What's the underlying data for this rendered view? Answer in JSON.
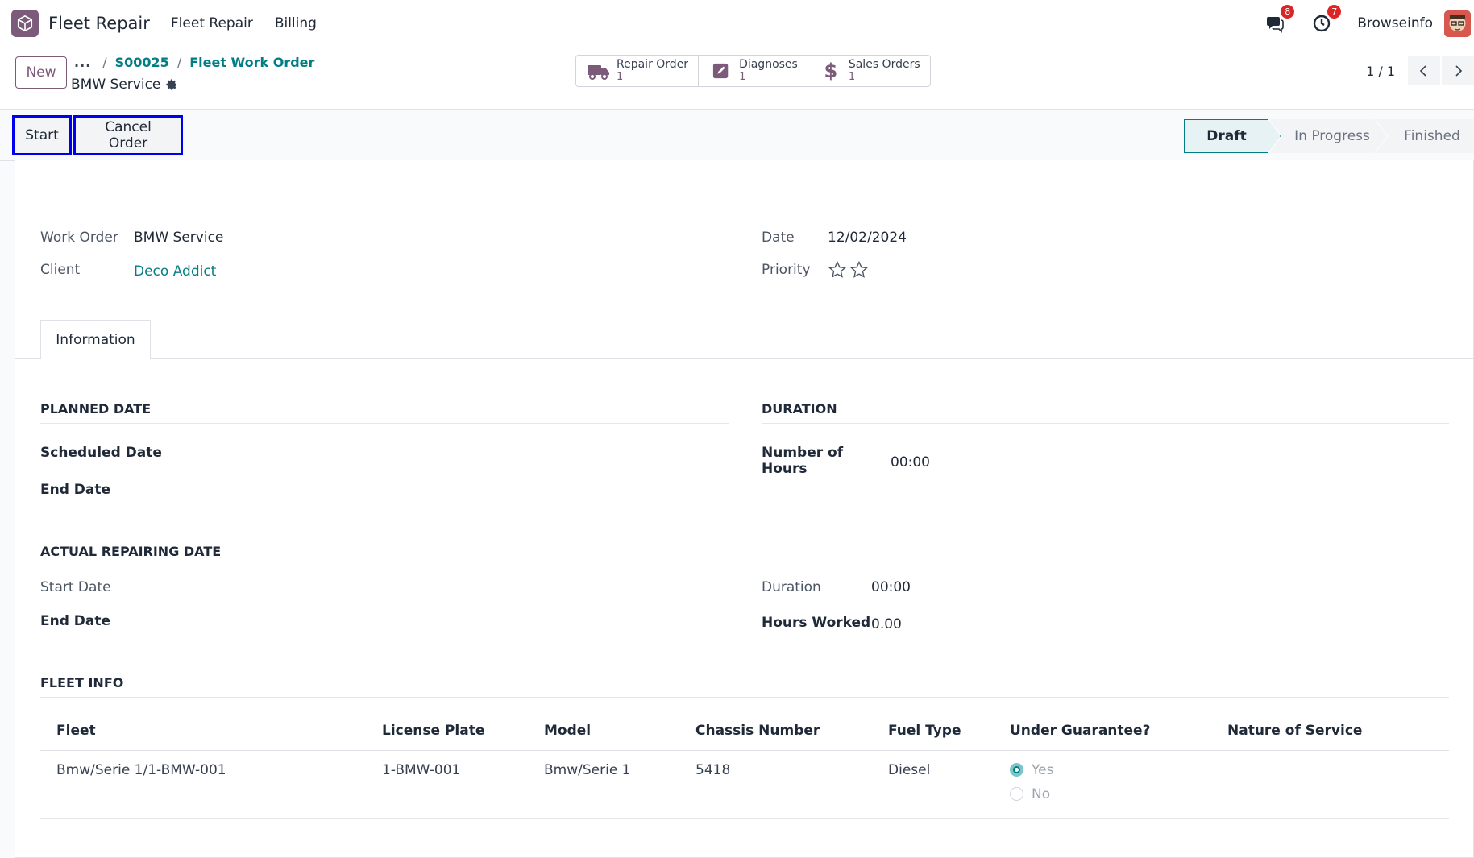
{
  "navbar": {
    "app_name": "Fleet Repair",
    "menu": [
      "Fleet Repair",
      "Billing"
    ],
    "messages_count": "8",
    "activities_count": "7",
    "company": "Browseinfo"
  },
  "control": {
    "new_label": "New",
    "breadcrumb_dots": "...",
    "breadcrumb": [
      "S00025",
      "Fleet Work Order"
    ],
    "record_title": "BMW Service",
    "smart_buttons": [
      {
        "label": "Repair Order",
        "count": "1",
        "icon": "truck-icon"
      },
      {
        "label": "Diagnoses",
        "count": "1",
        "icon": "pencil-square-icon"
      },
      {
        "label": "Sales Orders",
        "count": "1",
        "icon": "dollar-icon"
      }
    ],
    "pager": "1 / 1"
  },
  "status": {
    "start_label": "Start",
    "cancel_label": "Cancel Order",
    "stages": [
      "Draft",
      "In Progress",
      "Finished"
    ],
    "active_stage": "Draft"
  },
  "form": {
    "work_order_label": "Work Order",
    "work_order_value": "BMW Service",
    "client_label": "Client",
    "client_value": "Deco Addict",
    "date_label": "Date",
    "date_value": "12/02/2024",
    "priority_label": "Priority",
    "tab_label": "Information",
    "planned_title": "PLANNED DATE",
    "scheduled_label": "Scheduled Date",
    "end_label": "End Date",
    "duration_title": "DURATION",
    "hours_label": "Number of Hours",
    "hours_value": "00:00",
    "actual_title": "ACTUAL REPAIRING DATE",
    "start_date_label": "Start Date",
    "actual_end_label": "End Date",
    "duration_label": "Duration",
    "duration_value": "00:00",
    "hours_worked_label": "Hours Worked",
    "hours_worked_value": "0.00",
    "fleet_title": "FLEET INFO"
  },
  "fleet_table": {
    "columns": [
      "Fleet",
      "License Plate",
      "Model",
      "Chassis Number",
      "Fuel Type",
      "Under Guarantee?",
      "Nature of Service"
    ],
    "rows": [
      {
        "fleet": "Bmw/Serie 1/1-BMW-001",
        "plate": "1-BMW-001",
        "model": "Bmw/Serie 1",
        "chassis": "5418",
        "fuel": "Diesel",
        "guarantee_yes": "Yes",
        "guarantee_no": "No",
        "nature": ""
      }
    ]
  },
  "colors": {
    "brand": "#7b5a7a",
    "accent": "#017e84",
    "highlight_border": "#0000ee"
  }
}
